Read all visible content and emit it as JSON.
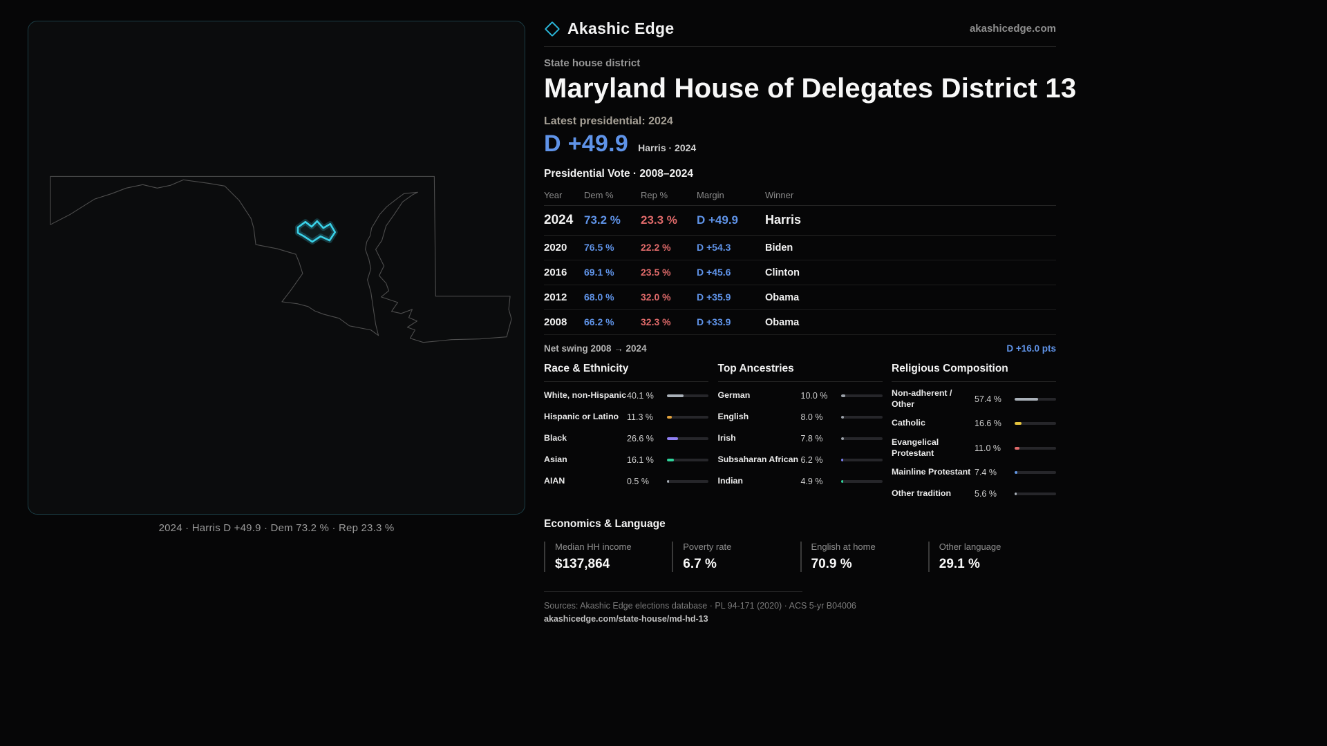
{
  "map_panel": {
    "caption": "2024 · Harris D +49.9 · Dem 73.2 % · Rep 23.3 %",
    "outline_color": "#4e4e4e",
    "highlight_color": "#3ad1e8"
  },
  "header": {
    "brand": "Akashic Edge",
    "site": "akashicedge.com"
  },
  "district": {
    "kicker": "State house district",
    "title": "Maryland House of Delegates District 13",
    "latest_label": "Latest presidential: 2024",
    "headline_margin": "D +49.9",
    "headline_note": "Harris · 2024"
  },
  "vote_table": {
    "title": "Presidential Vote · 2008–2024",
    "columns": [
      "Year",
      "Dem %",
      "Rep %",
      "Margin",
      "Winner"
    ],
    "rows": [
      {
        "year": "2024",
        "dem": "73.2 %",
        "rep": "23.3 %",
        "margin": "D +49.9",
        "winner": "Harris"
      },
      {
        "year": "2020",
        "dem": "76.5 %",
        "rep": "22.2 %",
        "margin": "D +54.3",
        "winner": "Biden"
      },
      {
        "year": "2016",
        "dem": "69.1 %",
        "rep": "23.5 %",
        "margin": "D +45.6",
        "winner": "Clinton"
      },
      {
        "year": "2012",
        "dem": "68.0 %",
        "rep": "32.0 %",
        "margin": "D +35.9",
        "winner": "Obama"
      },
      {
        "year": "2008",
        "dem": "66.2 %",
        "rep": "32.3 %",
        "margin": "D +33.9",
        "winner": "Obama"
      }
    ],
    "net_swing_label": "Net swing 2008 → 2024",
    "net_swing_value": "D +16.0 pts"
  },
  "demographics": {
    "race": {
      "title": "Race & Ethnicity",
      "rows": [
        {
          "label": "White, non-Hispanic",
          "value": "40.1 %",
          "pct": 40.1,
          "color": "#a9b0b8"
        },
        {
          "label": "Hispanic or Latino",
          "value": "11.3 %",
          "pct": 11.3,
          "color": "#e2a23c"
        },
        {
          "label": "Black",
          "value": "26.6 %",
          "pct": 26.6,
          "color": "#8f7ff2"
        },
        {
          "label": "Asian",
          "value": "16.1 %",
          "pct": 16.1,
          "color": "#2fd39a"
        },
        {
          "label": "AIAN",
          "value": "0.5 %",
          "pct": 0.5,
          "color": "#a9b0b8"
        }
      ]
    },
    "ancestries": {
      "title": "Top Ancestries",
      "rows": [
        {
          "label": "German",
          "value": "10.0 %",
          "pct": 10.0,
          "color": "#9aa0a8"
        },
        {
          "label": "English",
          "value": "8.0 %",
          "pct": 8.0,
          "color": "#9aa0a8"
        },
        {
          "label": "Irish",
          "value": "7.8 %",
          "pct": 7.8,
          "color": "#9aa0a8"
        },
        {
          "label": "Subsaharan African",
          "value": "6.2 %",
          "pct": 6.2,
          "color": "#7a7ff0"
        },
        {
          "label": "Indian",
          "value": "4.9 %",
          "pct": 4.9,
          "color": "#2fd39a"
        }
      ]
    },
    "religion": {
      "title": "Religious Composition",
      "rows": [
        {
          "label": "Non-adherent / Other",
          "value": "57.4 %",
          "pct": 57.4,
          "color": "#a9b0b8"
        },
        {
          "label": "Catholic",
          "value": "16.6 %",
          "pct": 16.6,
          "color": "#e3c23c"
        },
        {
          "label": "Evangelical Protestant",
          "value": "11.0 %",
          "pct": 11.0,
          "color": "#e06a6a"
        },
        {
          "label": "Mainline Protestant",
          "value": "7.4 %",
          "pct": 7.4,
          "color": "#6197e6"
        },
        {
          "label": "Other tradition",
          "value": "5.6 %",
          "pct": 5.6,
          "color": "#a9b0b8"
        }
      ]
    }
  },
  "economics": {
    "title": "Economics & Language",
    "stats": [
      {
        "label": "Median HH income",
        "value": "$137,864"
      },
      {
        "label": "Poverty rate",
        "value": "6.7 %"
      },
      {
        "label": "English at home",
        "value": "70.9 %"
      },
      {
        "label": "Other language",
        "value": "29.1 %"
      }
    ]
  },
  "footer": {
    "sources": "Sources: Akashic Edge elections database · PL 94-171 (2020) · ACS 5-yr B04006",
    "permalink": "akashicedge.com/state-house/md-hd-13"
  },
  "colors": {
    "dem": "#5f93e8",
    "rep": "#e06a6a",
    "accent": "#3ad1e8"
  }
}
